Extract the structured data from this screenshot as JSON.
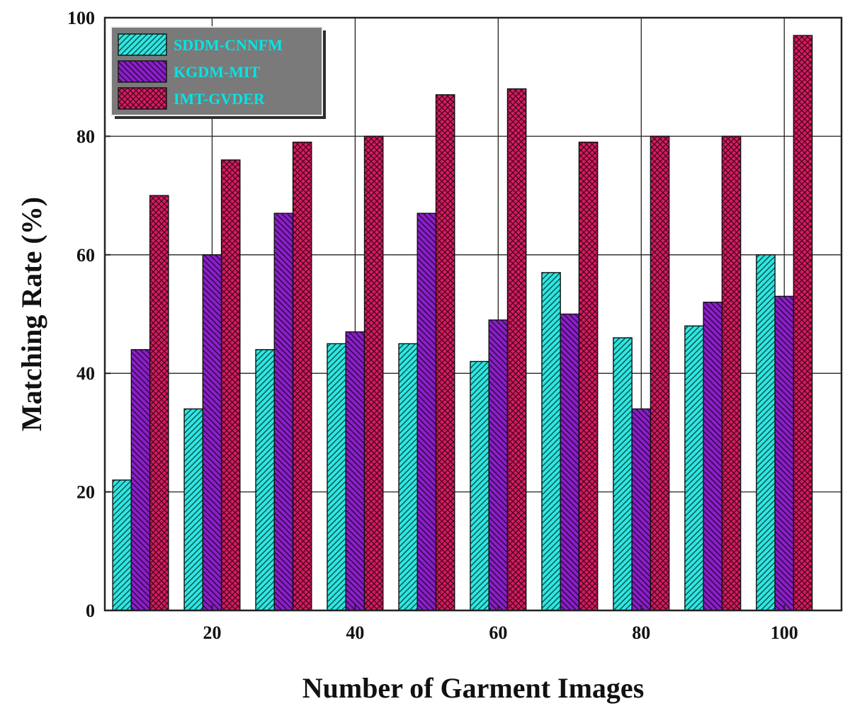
{
  "chart_data": {
    "type": "bar",
    "title": "",
    "xlabel": "Number of Garment Images",
    "ylabel": "Matching Rate (%)",
    "categories": [
      "10",
      "20",
      "30",
      "40",
      "50",
      "60",
      "70",
      "80",
      "90",
      "100"
    ],
    "x_tick_labels": [
      "20",
      "40",
      "60",
      "80",
      "100"
    ],
    "y_ticks": [
      0,
      20,
      40,
      60,
      80,
      100
    ],
    "ylim": [
      0,
      100
    ],
    "xlim": [
      5,
      108
    ],
    "grid": true,
    "legend_position": "top-left",
    "series": [
      {
        "name": "SDDM-CNNFM",
        "color": "#2ee6e0",
        "values": [
          22,
          34,
          44,
          45,
          45,
          42,
          57,
          46,
          48,
          60
        ]
      },
      {
        "name": "KGDM-MIT",
        "color": "#8a1fc7",
        "values": [
          44,
          60,
          67,
          47,
          67,
          49,
          50,
          34,
          52,
          53
        ]
      },
      {
        "name": "IMT-GVDER",
        "color": "#d81b63",
        "values": [
          70,
          76,
          79,
          80,
          87,
          88,
          79,
          80,
          80,
          97
        ]
      }
    ],
    "legend_text_color": "#00e6e6",
    "legend_bg_color": "#7a7a7a"
  }
}
